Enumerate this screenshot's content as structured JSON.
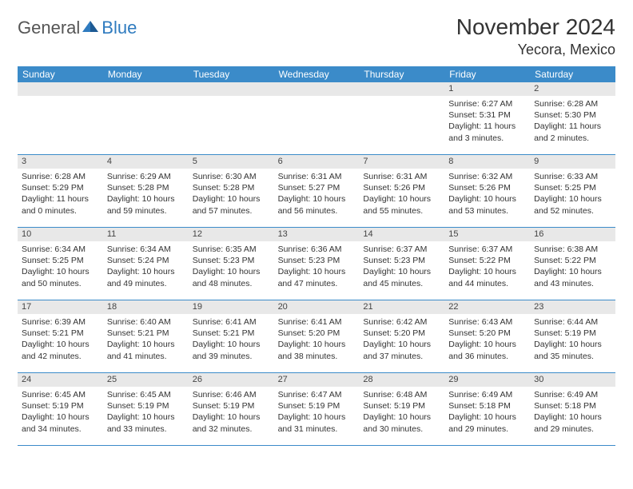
{
  "logo": {
    "word1": "General",
    "word2": "Blue"
  },
  "header": {
    "month_title": "November 2024",
    "location": "Yecora, Mexico"
  },
  "colors": {
    "header_bg": "#3b8bc9",
    "header_text": "#ffffff",
    "daynum_bg": "#e8e8e8",
    "row_divider": "#3b8bc9",
    "text": "#333333",
    "logo_gray": "#555555",
    "logo_blue": "#2f7bbf"
  },
  "days_of_week": [
    "Sunday",
    "Monday",
    "Tuesday",
    "Wednesday",
    "Thursday",
    "Friday",
    "Saturday"
  ],
  "weeks": [
    [
      {
        "n": "",
        "sr": "",
        "ss": "",
        "dl": ""
      },
      {
        "n": "",
        "sr": "",
        "ss": "",
        "dl": ""
      },
      {
        "n": "",
        "sr": "",
        "ss": "",
        "dl": ""
      },
      {
        "n": "",
        "sr": "",
        "ss": "",
        "dl": ""
      },
      {
        "n": "",
        "sr": "",
        "ss": "",
        "dl": ""
      },
      {
        "n": "1",
        "sr": "Sunrise: 6:27 AM",
        "ss": "Sunset: 5:31 PM",
        "dl": "Daylight: 11 hours and 3 minutes."
      },
      {
        "n": "2",
        "sr": "Sunrise: 6:28 AM",
        "ss": "Sunset: 5:30 PM",
        "dl": "Daylight: 11 hours and 2 minutes."
      }
    ],
    [
      {
        "n": "3",
        "sr": "Sunrise: 6:28 AM",
        "ss": "Sunset: 5:29 PM",
        "dl": "Daylight: 11 hours and 0 minutes."
      },
      {
        "n": "4",
        "sr": "Sunrise: 6:29 AM",
        "ss": "Sunset: 5:28 PM",
        "dl": "Daylight: 10 hours and 59 minutes."
      },
      {
        "n": "5",
        "sr": "Sunrise: 6:30 AM",
        "ss": "Sunset: 5:28 PM",
        "dl": "Daylight: 10 hours and 57 minutes."
      },
      {
        "n": "6",
        "sr": "Sunrise: 6:31 AM",
        "ss": "Sunset: 5:27 PM",
        "dl": "Daylight: 10 hours and 56 minutes."
      },
      {
        "n": "7",
        "sr": "Sunrise: 6:31 AM",
        "ss": "Sunset: 5:26 PM",
        "dl": "Daylight: 10 hours and 55 minutes."
      },
      {
        "n": "8",
        "sr": "Sunrise: 6:32 AM",
        "ss": "Sunset: 5:26 PM",
        "dl": "Daylight: 10 hours and 53 minutes."
      },
      {
        "n": "9",
        "sr": "Sunrise: 6:33 AM",
        "ss": "Sunset: 5:25 PM",
        "dl": "Daylight: 10 hours and 52 minutes."
      }
    ],
    [
      {
        "n": "10",
        "sr": "Sunrise: 6:34 AM",
        "ss": "Sunset: 5:25 PM",
        "dl": "Daylight: 10 hours and 50 minutes."
      },
      {
        "n": "11",
        "sr": "Sunrise: 6:34 AM",
        "ss": "Sunset: 5:24 PM",
        "dl": "Daylight: 10 hours and 49 minutes."
      },
      {
        "n": "12",
        "sr": "Sunrise: 6:35 AM",
        "ss": "Sunset: 5:23 PM",
        "dl": "Daylight: 10 hours and 48 minutes."
      },
      {
        "n": "13",
        "sr": "Sunrise: 6:36 AM",
        "ss": "Sunset: 5:23 PM",
        "dl": "Daylight: 10 hours and 47 minutes."
      },
      {
        "n": "14",
        "sr": "Sunrise: 6:37 AM",
        "ss": "Sunset: 5:23 PM",
        "dl": "Daylight: 10 hours and 45 minutes."
      },
      {
        "n": "15",
        "sr": "Sunrise: 6:37 AM",
        "ss": "Sunset: 5:22 PM",
        "dl": "Daylight: 10 hours and 44 minutes."
      },
      {
        "n": "16",
        "sr": "Sunrise: 6:38 AM",
        "ss": "Sunset: 5:22 PM",
        "dl": "Daylight: 10 hours and 43 minutes."
      }
    ],
    [
      {
        "n": "17",
        "sr": "Sunrise: 6:39 AM",
        "ss": "Sunset: 5:21 PM",
        "dl": "Daylight: 10 hours and 42 minutes."
      },
      {
        "n": "18",
        "sr": "Sunrise: 6:40 AM",
        "ss": "Sunset: 5:21 PM",
        "dl": "Daylight: 10 hours and 41 minutes."
      },
      {
        "n": "19",
        "sr": "Sunrise: 6:41 AM",
        "ss": "Sunset: 5:21 PM",
        "dl": "Daylight: 10 hours and 39 minutes."
      },
      {
        "n": "20",
        "sr": "Sunrise: 6:41 AM",
        "ss": "Sunset: 5:20 PM",
        "dl": "Daylight: 10 hours and 38 minutes."
      },
      {
        "n": "21",
        "sr": "Sunrise: 6:42 AM",
        "ss": "Sunset: 5:20 PM",
        "dl": "Daylight: 10 hours and 37 minutes."
      },
      {
        "n": "22",
        "sr": "Sunrise: 6:43 AM",
        "ss": "Sunset: 5:20 PM",
        "dl": "Daylight: 10 hours and 36 minutes."
      },
      {
        "n": "23",
        "sr": "Sunrise: 6:44 AM",
        "ss": "Sunset: 5:19 PM",
        "dl": "Daylight: 10 hours and 35 minutes."
      }
    ],
    [
      {
        "n": "24",
        "sr": "Sunrise: 6:45 AM",
        "ss": "Sunset: 5:19 PM",
        "dl": "Daylight: 10 hours and 34 minutes."
      },
      {
        "n": "25",
        "sr": "Sunrise: 6:45 AM",
        "ss": "Sunset: 5:19 PM",
        "dl": "Daylight: 10 hours and 33 minutes."
      },
      {
        "n": "26",
        "sr": "Sunrise: 6:46 AM",
        "ss": "Sunset: 5:19 PM",
        "dl": "Daylight: 10 hours and 32 minutes."
      },
      {
        "n": "27",
        "sr": "Sunrise: 6:47 AM",
        "ss": "Sunset: 5:19 PM",
        "dl": "Daylight: 10 hours and 31 minutes."
      },
      {
        "n": "28",
        "sr": "Sunrise: 6:48 AM",
        "ss": "Sunset: 5:19 PM",
        "dl": "Daylight: 10 hours and 30 minutes."
      },
      {
        "n": "29",
        "sr": "Sunrise: 6:49 AM",
        "ss": "Sunset: 5:18 PM",
        "dl": "Daylight: 10 hours and 29 minutes."
      },
      {
        "n": "30",
        "sr": "Sunrise: 6:49 AM",
        "ss": "Sunset: 5:18 PM",
        "dl": "Daylight: 10 hours and 29 minutes."
      }
    ]
  ]
}
